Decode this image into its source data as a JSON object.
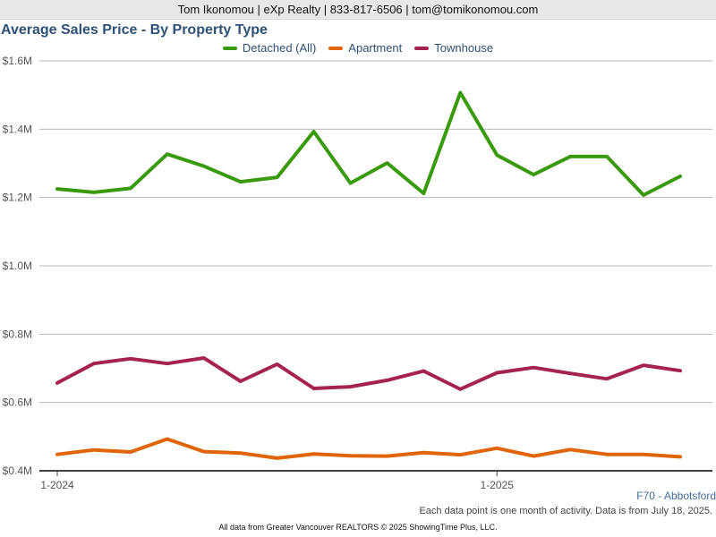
{
  "header": {
    "contact": "Tom Ikonomou | eXp Realty | 833-817-6506 | tom@tomikonomou.com"
  },
  "chart_data": {
    "type": "line",
    "title": "Average Sales Price - By Property Type",
    "xlabel": "",
    "ylabel": "",
    "x": [
      "1-2024",
      "2-2024",
      "3-2024",
      "4-2024",
      "5-2024",
      "6-2024",
      "7-2024",
      "8-2024",
      "9-2024",
      "10-2024",
      "11-2024",
      "12-2024",
      "1-2025",
      "2-2025",
      "3-2025",
      "4-2025",
      "5-2025",
      "6-2025"
    ],
    "x_tick_labels": [
      "1-2024",
      "1-2025"
    ],
    "ylim": [
      400000,
      1600000
    ],
    "y_ticks": [
      {
        "value": 400000,
        "label": "$0.4M"
      },
      {
        "value": 600000,
        "label": "$0.6M"
      },
      {
        "value": 800000,
        "label": "$0.8M"
      },
      {
        "value": 1000000,
        "label": "$1.0M"
      },
      {
        "value": 1200000,
        "label": "$1.2M"
      },
      {
        "value": 1400000,
        "label": "$1.4M"
      },
      {
        "value": 1600000,
        "label": "$1.6M"
      }
    ],
    "grid": true,
    "legend_position": "top-center",
    "series": [
      {
        "name": "Detached (All)",
        "color": "#3a9a0e",
        "values": [
          1225000,
          1215000,
          1227000,
          1327000,
          1292000,
          1246000,
          1259000,
          1393000,
          1242000,
          1301000,
          1212000,
          1507000,
          1324000,
          1267000,
          1320000,
          1320000,
          1207000,
          1262000
        ]
      },
      {
        "name": "Apartment",
        "color": "#e06508",
        "values": [
          448000,
          461000,
          455000,
          493000,
          456000,
          452000,
          437000,
          449000,
          444000,
          443000,
          453000,
          447000,
          466000,
          443000,
          462000,
          448000,
          448000,
          441000
        ]
      },
      {
        "name": "Townhouse",
        "color": "#a52350",
        "values": [
          657000,
          714000,
          728000,
          714000,
          730000,
          662000,
          712000,
          641000,
          646000,
          665000,
          692000,
          639000,
          687000,
          702000,
          685000,
          669000,
          709000,
          693000
        ]
      }
    ]
  },
  "region_label": "F70 - Abbotsford",
  "note": "Each data point is one month of activity. Data is from July 18, 2025.",
  "footer": "All data from Greater Vancouver REALTORS © 2025 ShowingTime Plus, LLC."
}
